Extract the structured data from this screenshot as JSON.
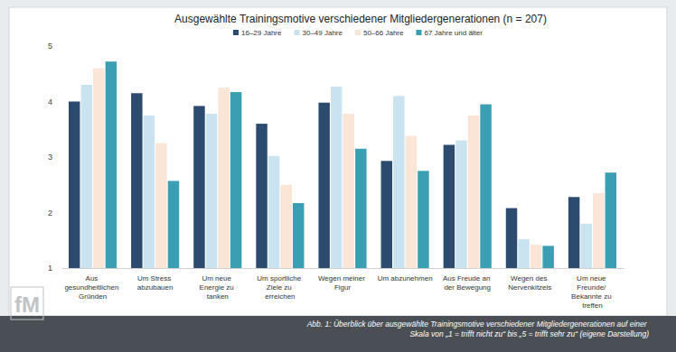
{
  "chart_data": {
    "type": "bar",
    "title": "Ausgewählte Trainingsmotive verschiedener Mitgliedergenerationen (n = 207)",
    "categories": [
      "Aus gesundheitlichen Gründen",
      "Um Stress abzubauen",
      "Um neue Energie zu tanken",
      "Um sportliche Ziele zu erreichen",
      "Wegen meiner Figur",
      "Um abzunehmen",
      "Aus Freude an der Bewegung",
      "Wegen des Nervenkitzels",
      "Um neue Freunde/ Bekannte zu treffen"
    ],
    "series": [
      {
        "name": "16–29 Jahre",
        "color": "#2d4b6e",
        "values": [
          4.0,
          4.15,
          3.92,
          3.6,
          3.98,
          2.93,
          3.22,
          2.08,
          2.28
        ]
      },
      {
        "name": "30–49 Jahre",
        "color": "#c9e4f0",
        "values": [
          4.3,
          3.75,
          3.78,
          3.02,
          4.27,
          4.1,
          3.3,
          1.52,
          1.8
        ]
      },
      {
        "name": "50–66 Jahre",
        "color": "#fbe5d6",
        "values": [
          4.6,
          3.25,
          4.25,
          2.5,
          3.78,
          3.38,
          3.75,
          1.42,
          2.35
        ]
      },
      {
        "name": "67 Jahre und älter",
        "color": "#3a9fb2",
        "values": [
          4.72,
          2.57,
          4.17,
          2.17,
          3.15,
          2.75,
          3.95,
          1.4,
          2.72
        ]
      }
    ],
    "ylim": [
      1,
      5
    ],
    "yticks": [
      1,
      2,
      3,
      4,
      5
    ],
    "grid": false,
    "legend": "top",
    "annotations": [
      "Abb. 1: Überblick über ausgewählte Trainingsmotive verschiedener Mitgliedergenerationen auf einer Skala von „1 = trifft nicht zu“ bis „5 = trifft sehr zu“ (eigene Darstellung)",
      "fM"
    ]
  }
}
